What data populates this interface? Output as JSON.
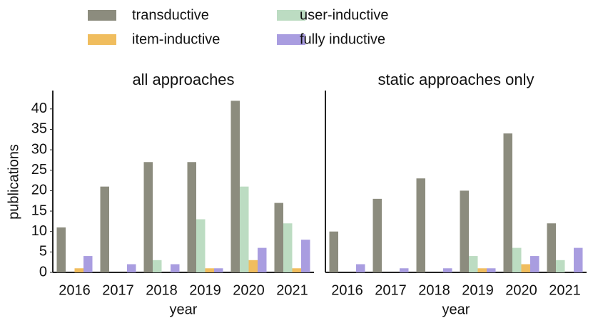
{
  "chart_data": [
    {
      "type": "bar",
      "title": "all approaches",
      "x_label": "year",
      "y_label": "publications",
      "categories": [
        "2016",
        "2017",
        "2018",
        "2019",
        "2020",
        "2021"
      ],
      "series": [
        {
          "name": "transductive",
          "color": "#8c8c7e",
          "values": [
            11,
            21,
            27,
            27,
            42,
            17
          ]
        },
        {
          "name": "user-inductive",
          "color": "#bcdcc2",
          "values": [
            0,
            0,
            3,
            13,
            21,
            12
          ]
        },
        {
          "name": "item-inductive",
          "color": "#f0bd5e",
          "values": [
            1,
            0,
            0,
            1,
            3,
            1
          ]
        },
        {
          "name": "fully inductive",
          "color": "#a99de0",
          "values": [
            4,
            2,
            2,
            1,
            6,
            8
          ]
        }
      ],
      "ylim": [
        0,
        44.5
      ],
      "yticks": [
        0,
        5,
        10,
        15,
        20,
        25,
        30,
        35,
        40
      ]
    },
    {
      "type": "bar",
      "title": "static approaches only",
      "x_label": "year",
      "categories": [
        "2016",
        "2017",
        "2018",
        "2019",
        "2020",
        "2021"
      ],
      "series": [
        {
          "values": [
            10,
            18,
            23,
            20,
            34,
            12
          ]
        },
        {
          "values": [
            0,
            0,
            0,
            4,
            6,
            3
          ]
        },
        {
          "values": [
            0,
            0,
            0,
            1,
            2,
            0
          ]
        },
        {
          "values": [
            2,
            1,
            1,
            1,
            4,
            6
          ]
        }
      ],
      "ylim": [
        0,
        44.5
      ]
    }
  ]
}
